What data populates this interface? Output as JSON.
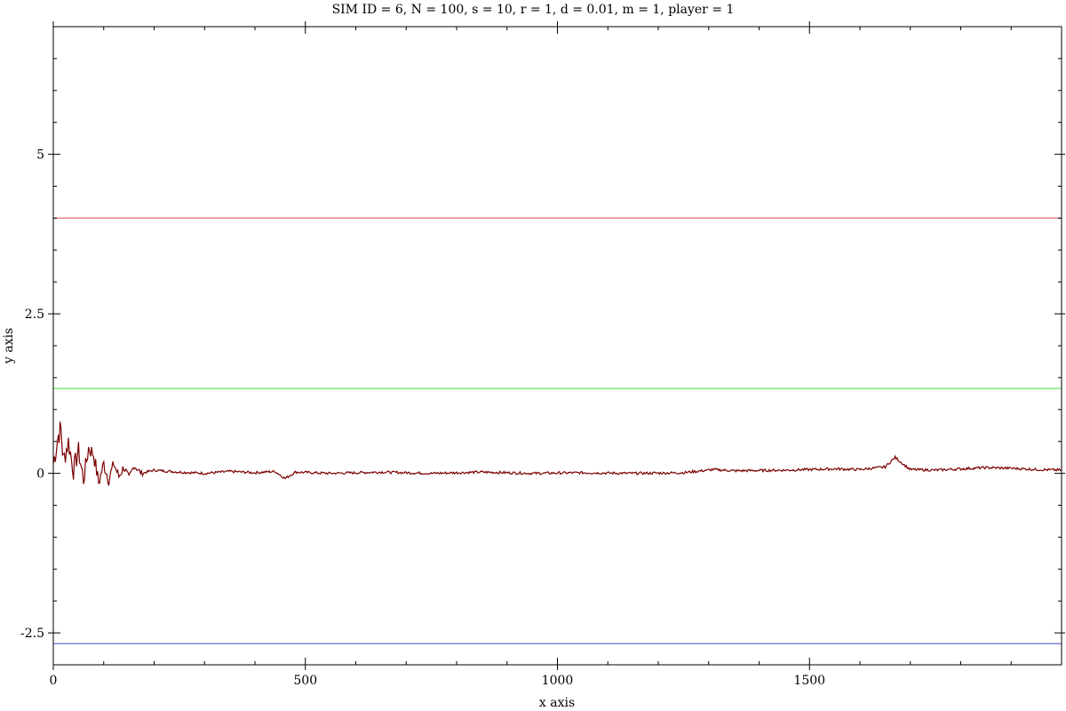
{
  "chart_data": {
    "type": "line",
    "title": "SIM ID = 6, N = 100, s = 10, r = 1, d = 0.01, m = 1, player = 1",
    "xlabel": "x axis",
    "ylabel": "y axis",
    "xlim": [
      0,
      2000
    ],
    "ylim": [
      -3.0,
      7.0
    ],
    "x_ticks": [
      0,
      500,
      1000,
      1500
    ],
    "x_tick_labels": [
      "0",
      "500",
      "1000",
      "1500"
    ],
    "y_ticks": [
      -2.5,
      0,
      2.5,
      5
    ],
    "y_tick_labels": [
      "-2.5",
      "0",
      "2.5",
      "5"
    ],
    "grid": false,
    "series": [
      {
        "values": [
          [
            0,
            4.0
          ],
          [
            2000,
            4.0
          ]
        ],
        "color": "#e88080"
      },
      {
        "values": [
          [
            0,
            1.33
          ],
          [
            2000,
            1.33
          ]
        ],
        "color": "#80e880"
      },
      {
        "values": [
          [
            0,
            -2.67
          ],
          [
            2000,
            -2.67
          ]
        ],
        "color": "#8080e0"
      },
      {
        "color": "#7a0000",
        "values": [
          [
            0,
            0.15
          ],
          [
            10,
            0.6
          ],
          [
            15,
            0.7
          ],
          [
            20,
            0.2
          ],
          [
            30,
            0.5
          ],
          [
            40,
            0.05
          ],
          [
            50,
            0.35
          ],
          [
            60,
            -0.1
          ],
          [
            70,
            0.4
          ],
          [
            80,
            0.3
          ],
          [
            90,
            -0.15
          ],
          [
            100,
            0.15
          ],
          [
            110,
            -0.1
          ],
          [
            120,
            0.15
          ],
          [
            130,
            -0.05
          ],
          [
            140,
            0.1
          ],
          [
            150,
            -0.08
          ],
          [
            160,
            0.12
          ],
          [
            175,
            0.0
          ],
          [
            200,
            0.05
          ],
          [
            250,
            0.02
          ],
          [
            300,
            0.0
          ],
          [
            350,
            0.03
          ],
          [
            400,
            0.01
          ],
          [
            440,
            0.03
          ],
          [
            460,
            -0.08
          ],
          [
            480,
            0.02
          ],
          [
            550,
            0.0
          ],
          [
            650,
            0.02
          ],
          [
            750,
            0.0
          ],
          [
            850,
            0.02
          ],
          [
            950,
            0.0
          ],
          [
            1050,
            0.01
          ],
          [
            1150,
            0.0
          ],
          [
            1250,
            0.01
          ],
          [
            1310,
            0.06
          ],
          [
            1350,
            0.04
          ],
          [
            1450,
            0.05
          ],
          [
            1550,
            0.07
          ],
          [
            1600,
            0.06
          ],
          [
            1650,
            0.1
          ],
          [
            1670,
            0.25
          ],
          [
            1690,
            0.12
          ],
          [
            1700,
            0.06
          ],
          [
            1750,
            0.05
          ],
          [
            1800,
            0.07
          ],
          [
            1850,
            0.09
          ],
          [
            1900,
            0.08
          ],
          [
            1950,
            0.06
          ],
          [
            2000,
            0.05
          ]
        ]
      }
    ]
  }
}
